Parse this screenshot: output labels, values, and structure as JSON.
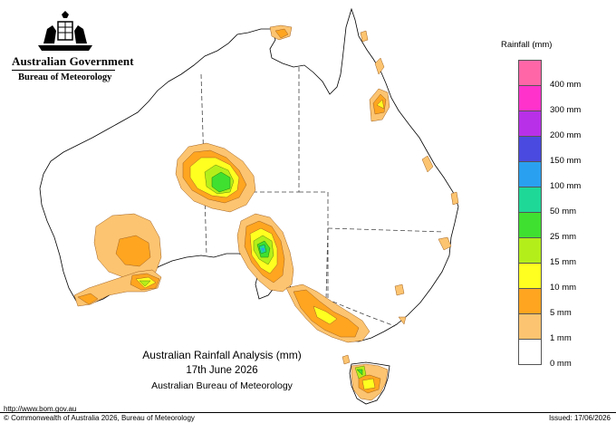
{
  "header": {
    "government": "Australian Government",
    "bureau": "Bureau of Meteorology"
  },
  "legend": {
    "title": "Rainfall (mm)",
    "items": [
      {
        "label": "",
        "color": "#ff66a8"
      },
      {
        "label": "400 mm",
        "color": "#ff33cc"
      },
      {
        "label": "300 mm",
        "color": "#b830e8"
      },
      {
        "label": "200 mm",
        "color": "#4a4ae0"
      },
      {
        "label": "150 mm",
        "color": "#2aa0f0"
      },
      {
        "label": "100 mm",
        "color": "#1ed898"
      },
      {
        "label": "50 mm",
        "color": "#40e030"
      },
      {
        "label": "25 mm",
        "color": "#b4ee1a"
      },
      {
        "label": "15 mm",
        "color": "#ffff20"
      },
      {
        "label": "10 mm",
        "color": "#ffa520"
      },
      {
        "label": "5 mm",
        "color": "#fcc470"
      },
      {
        "label": "1 mm",
        "color": "#ffffff"
      },
      {
        "label": "0 mm",
        "color": ""
      }
    ]
  },
  "title": {
    "line1": "Australian Rainfall Analysis (mm)",
    "line2": "17th June 2026",
    "line3": "Australian Bureau of Meteorology"
  },
  "footer": {
    "url": "http://www.bom.gov.au",
    "copyright": "© Commonwealth of Australia 2026, Bureau of Meteorology",
    "issued": "Issued: 17/06/2026"
  }
}
